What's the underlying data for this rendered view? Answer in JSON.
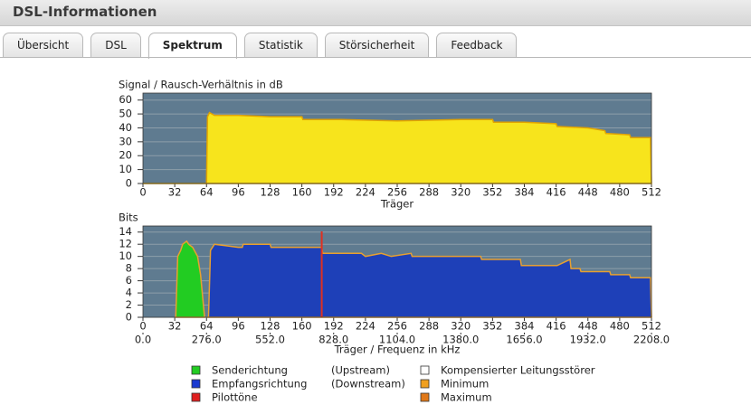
{
  "header": {
    "title": "DSL-Informationen"
  },
  "tabs": {
    "items": [
      "Übersicht",
      "DSL",
      "Spektrum",
      "Statistik",
      "Störsicherheit",
      "Feedback"
    ],
    "active": 2
  },
  "chart_data": [
    {
      "type": "area",
      "title": "Signal / Rausch-Verhältnis in dB",
      "xlabel": "Träger",
      "x": [
        0,
        64,
        65,
        67,
        72,
        96,
        128,
        160,
        161,
        200,
        256,
        320,
        352,
        353,
        384,
        416,
        417,
        448,
        465,
        466,
        490,
        491,
        511,
        512
      ],
      "series": [
        {
          "color": "#f7e41c",
          "stroke": "#e2a400",
          "values": [
            0,
            0,
            48,
            51,
            49,
            49,
            48,
            48,
            46,
            46,
            45,
            46,
            46,
            44,
            44,
            43,
            41,
            40,
            38,
            36,
            35,
            33,
            33,
            0
          ]
        }
      ],
      "xlim": [
        0,
        512
      ],
      "xticks": [
        0,
        32,
        64,
        96,
        128,
        160,
        192,
        224,
        256,
        288,
        320,
        352,
        384,
        416,
        448,
        480,
        512
      ],
      "ylim": [
        0,
        65
      ],
      "yticks": [
        0,
        10,
        20,
        30,
        40,
        50,
        60
      ],
      "grid": true
    },
    {
      "type": "area",
      "title": "Bits",
      "xlabel": "Träger / Frequenz in kHz",
      "series": [
        {
          "color": "#22cc22",
          "stroke": "#e8a030",
          "x": [
            32,
            33,
            35,
            38,
            40,
            44,
            46,
            50,
            55,
            58,
            62
          ],
          "values": [
            0,
            0,
            10,
            11,
            12,
            12.5,
            12,
            11.5,
            10,
            7,
            0
          ]
        },
        {
          "color": "#1e40b8",
          "stroke": "#e8a030",
          "x": [
            64,
            66,
            68,
            72,
            96,
            100,
            101,
            128,
            129,
            180,
            181,
            210,
            211,
            220,
            224,
            240,
            250,
            270,
            271,
            340,
            341,
            380,
            381,
            416,
            417,
            430,
            431,
            440,
            441,
            470,
            471,
            490,
            491,
            510,
            511,
            512
          ],
          "values": [
            0,
            0,
            11,
            12,
            11.5,
            11.5,
            12,
            12,
            11.5,
            11.5,
            10.5,
            10.5,
            10.5,
            10.5,
            10,
            10.5,
            10,
            10.5,
            10,
            10,
            9.5,
            9.5,
            8.5,
            8.5,
            8.5,
            9.5,
            8,
            8,
            7.5,
            7.5,
            7,
            7,
            6.5,
            6.5,
            6.5,
            0
          ]
        }
      ],
      "pilot_tones": {
        "color": "#e03020",
        "x": [
          180
        ]
      },
      "xlim": [
        0,
        512
      ],
      "xticks": [
        0,
        32,
        64,
        96,
        128,
        160,
        192,
        224,
        256,
        288,
        320,
        352,
        384,
        416,
        448,
        480,
        512
      ],
      "x2lim": [
        0,
        2208
      ],
      "x2ticks": [
        {
          "value": 0,
          "label": "0.0"
        },
        {
          "value": 276,
          "label": "276.0"
        },
        {
          "value": 552,
          "label": "552.0"
        },
        {
          "value": 828,
          "label": "828.0"
        },
        {
          "value": 1104,
          "label": "1104.0"
        },
        {
          "value": 1380,
          "label": "1380.0"
        },
        {
          "value": 1656,
          "label": "1656.0"
        },
        {
          "value": 1932,
          "label": "1932.0"
        },
        {
          "value": 2208,
          "label": "2208.0"
        }
      ],
      "ylim": [
        0,
        15
      ],
      "yticks": [
        0,
        2,
        4,
        6,
        8,
        10,
        12,
        14
      ],
      "grid": true
    }
  ],
  "legend": {
    "left": [
      {
        "label": "Senderichtung",
        "color": "#22cc22"
      },
      {
        "label": "Empfangsrichtung",
        "color": "#1a3ad0"
      },
      {
        "label": "Pilottöne",
        "color": "#e02020"
      }
    ],
    "notes": [
      "(Upstream)",
      "(Downstream)"
    ],
    "right": [
      {
        "label": "Kompensierter Leitungsstörer",
        "color": "#ffffff"
      },
      {
        "label": "Minimum",
        "color": "#f0a020"
      },
      {
        "label": "Maximum",
        "color": "#e07818"
      }
    ]
  }
}
